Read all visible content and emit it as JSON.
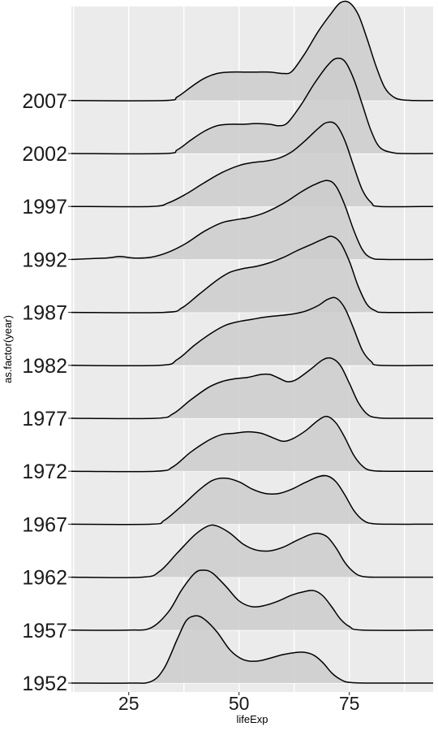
{
  "chart_data": {
    "type": "ridgeline",
    "xlabel": "lifeExp",
    "ylabel": "as.factor(year)",
    "xticks": [
      25,
      50,
      75
    ],
    "xlim": [
      12,
      94
    ],
    "grid": true,
    "background_color": "#ebebeb",
    "fill_color": "#cccccc",
    "line_color": "#000000",
    "categories": [
      "1952",
      "1957",
      "1962",
      "1967",
      "1972",
      "1977",
      "1982",
      "1987",
      "1992",
      "1997",
      "2002",
      "2007"
    ],
    "series": [
      {
        "name": "1952",
        "points": [
          [
            12,
            0
          ],
          [
            25,
            0
          ],
          [
            30,
            0.02
          ],
          [
            33,
            0.2
          ],
          [
            36,
            0.6
          ],
          [
            38,
            0.85
          ],
          [
            40,
            0.92
          ],
          [
            42,
            0.88
          ],
          [
            45,
            0.7
          ],
          [
            48,
            0.45
          ],
          [
            51,
            0.32
          ],
          [
            54,
            0.3
          ],
          [
            57,
            0.34
          ],
          [
            60,
            0.39
          ],
          [
            63,
            0.42
          ],
          [
            65,
            0.42
          ],
          [
            67,
            0.38
          ],
          [
            69,
            0.28
          ],
          [
            71,
            0.14
          ],
          [
            73,
            0.05
          ],
          [
            75,
            0.01
          ],
          [
            80,
            0
          ],
          [
            94,
            0
          ]
        ]
      },
      {
        "name": "1957",
        "points": [
          [
            12,
            0
          ],
          [
            25,
            0
          ],
          [
            30,
            0.03
          ],
          [
            34,
            0.25
          ],
          [
            37,
            0.55
          ],
          [
            40,
            0.78
          ],
          [
            42,
            0.82
          ],
          [
            44,
            0.78
          ],
          [
            47,
            0.6
          ],
          [
            50,
            0.4
          ],
          [
            53,
            0.32
          ],
          [
            56,
            0.34
          ],
          [
            59,
            0.4
          ],
          [
            62,
            0.48
          ],
          [
            65,
            0.53
          ],
          [
            67,
            0.54
          ],
          [
            69,
            0.47
          ],
          [
            71,
            0.32
          ],
          [
            73,
            0.15
          ],
          [
            75,
            0.05
          ],
          [
            78,
            0
          ],
          [
            94,
            0
          ]
        ]
      },
      {
        "name": "1962",
        "points": [
          [
            12,
            0
          ],
          [
            28,
            0
          ],
          [
            32,
            0.08
          ],
          [
            36,
            0.33
          ],
          [
            40,
            0.58
          ],
          [
            43,
            0.7
          ],
          [
            45,
            0.7
          ],
          [
            48,
            0.6
          ],
          [
            51,
            0.45
          ],
          [
            54,
            0.37
          ],
          [
            57,
            0.36
          ],
          [
            60,
            0.41
          ],
          [
            63,
            0.5
          ],
          [
            66,
            0.58
          ],
          [
            68,
            0.6
          ],
          [
            70,
            0.55
          ],
          [
            72,
            0.4
          ],
          [
            74,
            0.2
          ],
          [
            76,
            0.07
          ],
          [
            78,
            0.01
          ],
          [
            82,
            0
          ],
          [
            94,
            0
          ]
        ]
      },
      {
        "name": "1967",
        "points": [
          [
            12,
            0
          ],
          [
            30,
            0
          ],
          [
            33,
            0.05
          ],
          [
            37,
            0.25
          ],
          [
            41,
            0.47
          ],
          [
            44,
            0.6
          ],
          [
            47,
            0.63
          ],
          [
            50,
            0.58
          ],
          [
            53,
            0.48
          ],
          [
            56,
            0.42
          ],
          [
            59,
            0.42
          ],
          [
            62,
            0.48
          ],
          [
            65,
            0.57
          ],
          [
            68,
            0.65
          ],
          [
            70,
            0.66
          ],
          [
            72,
            0.58
          ],
          [
            74,
            0.4
          ],
          [
            76,
            0.19
          ],
          [
            78,
            0.06
          ],
          [
            80,
            0.01
          ],
          [
            84,
            0
          ],
          [
            94,
            0
          ]
        ]
      },
      {
        "name": "1972",
        "points": [
          [
            12,
            0
          ],
          [
            31,
            0
          ],
          [
            35,
            0.06
          ],
          [
            39,
            0.26
          ],
          [
            43,
            0.42
          ],
          [
            46,
            0.5
          ],
          [
            49,
            0.52
          ],
          [
            52,
            0.54
          ],
          [
            55,
            0.52
          ],
          [
            58,
            0.45
          ],
          [
            60,
            0.41
          ],
          [
            62,
            0.44
          ],
          [
            65,
            0.55
          ],
          [
            68,
            0.7
          ],
          [
            70,
            0.75
          ],
          [
            72,
            0.66
          ],
          [
            74,
            0.46
          ],
          [
            76,
            0.22
          ],
          [
            78,
            0.07
          ],
          [
            80,
            0.01
          ],
          [
            84,
            0
          ],
          [
            94,
            0
          ]
        ]
      },
      {
        "name": "1977",
        "points": [
          [
            12,
            0
          ],
          [
            31,
            0
          ],
          [
            35,
            0.06
          ],
          [
            39,
            0.25
          ],
          [
            43,
            0.42
          ],
          [
            46,
            0.5
          ],
          [
            49,
            0.54
          ],
          [
            52,
            0.56
          ],
          [
            55,
            0.6
          ],
          [
            57,
            0.6
          ],
          [
            59,
            0.55
          ],
          [
            61,
            0.5
          ],
          [
            63,
            0.53
          ],
          [
            66,
            0.66
          ],
          [
            69,
            0.8
          ],
          [
            71,
            0.82
          ],
          [
            73,
            0.72
          ],
          [
            75,
            0.48
          ],
          [
            77,
            0.22
          ],
          [
            79,
            0.06
          ],
          [
            81,
            0.01
          ],
          [
            85,
            0
          ],
          [
            94,
            0
          ]
        ]
      },
      {
        "name": "1982",
        "points": [
          [
            12,
            0
          ],
          [
            32,
            0
          ],
          [
            36,
            0.08
          ],
          [
            40,
            0.28
          ],
          [
            44,
            0.45
          ],
          [
            47,
            0.55
          ],
          [
            50,
            0.6
          ],
          [
            53,
            0.63
          ],
          [
            56,
            0.66
          ],
          [
            59,
            0.68
          ],
          [
            62,
            0.7
          ],
          [
            65,
            0.74
          ],
          [
            68,
            0.82
          ],
          [
            70,
            0.9
          ],
          [
            72,
            0.92
          ],
          [
            74,
            0.78
          ],
          [
            76,
            0.5
          ],
          [
            78,
            0.2
          ],
          [
            80,
            0.05
          ],
          [
            82,
            0
          ],
          [
            94,
            0
          ]
        ]
      },
      {
        "name": "1987",
        "points": [
          [
            12,
            0
          ],
          [
            33,
            0
          ],
          [
            37,
            0.06
          ],
          [
            41,
            0.25
          ],
          [
            45,
            0.44
          ],
          [
            48,
            0.55
          ],
          [
            51,
            0.6
          ],
          [
            54,
            0.63
          ],
          [
            57,
            0.68
          ],
          [
            60,
            0.75
          ],
          [
            63,
            0.84
          ],
          [
            66,
            0.92
          ],
          [
            69,
            1.0
          ],
          [
            71,
            1.04
          ],
          [
            73,
            0.95
          ],
          [
            75,
            0.7
          ],
          [
            77,
            0.36
          ],
          [
            79,
            0.11
          ],
          [
            81,
            0.02
          ],
          [
            83,
            0
          ],
          [
            94,
            0
          ]
        ]
      },
      {
        "name": "1992",
        "points": [
          [
            12,
            0
          ],
          [
            20,
            0.02
          ],
          [
            23,
            0.04
          ],
          [
            26,
            0.02
          ],
          [
            30,
            0.03
          ],
          [
            34,
            0.1
          ],
          [
            38,
            0.22
          ],
          [
            42,
            0.38
          ],
          [
            46,
            0.5
          ],
          [
            49,
            0.54
          ],
          [
            52,
            0.57
          ],
          [
            55,
            0.62
          ],
          [
            58,
            0.7
          ],
          [
            61,
            0.8
          ],
          [
            64,
            0.92
          ],
          [
            67,
            1.02
          ],
          [
            70,
            1.08
          ],
          [
            72,
            1.0
          ],
          [
            74,
            0.74
          ],
          [
            76,
            0.4
          ],
          [
            78,
            0.13
          ],
          [
            80,
            0.02
          ],
          [
            83,
            0
          ],
          [
            94,
            0
          ]
        ]
      },
      {
        "name": "1997",
        "points": [
          [
            12,
            0
          ],
          [
            30,
            0
          ],
          [
            34,
            0.05
          ],
          [
            38,
            0.17
          ],
          [
            42,
            0.32
          ],
          [
            46,
            0.46
          ],
          [
            50,
            0.56
          ],
          [
            53,
            0.6
          ],
          [
            56,
            0.62
          ],
          [
            59,
            0.66
          ],
          [
            62,
            0.75
          ],
          [
            65,
            0.9
          ],
          [
            68,
            1.07
          ],
          [
            70,
            1.15
          ],
          [
            72,
            1.12
          ],
          [
            74,
            0.9
          ],
          [
            76,
            0.55
          ],
          [
            78,
            0.22
          ],
          [
            80,
            0.05
          ],
          [
            82,
            0
          ],
          [
            94,
            0
          ]
        ]
      },
      {
        "name": "2002",
        "points": [
          [
            12,
            0
          ],
          [
            33,
            0
          ],
          [
            36,
            0.05
          ],
          [
            39,
            0.18
          ],
          [
            42,
            0.3
          ],
          [
            45,
            0.38
          ],
          [
            48,
            0.4
          ],
          [
            51,
            0.4
          ],
          [
            54,
            0.41
          ],
          [
            57,
            0.4
          ],
          [
            59,
            0.38
          ],
          [
            61,
            0.42
          ],
          [
            64,
            0.66
          ],
          [
            67,
            0.95
          ],
          [
            70,
            1.2
          ],
          [
            72,
            1.3
          ],
          [
            74,
            1.26
          ],
          [
            76,
            1.02
          ],
          [
            78,
            0.66
          ],
          [
            80,
            0.3
          ],
          [
            82,
            0.08
          ],
          [
            85,
            0.01
          ],
          [
            88,
            0
          ],
          [
            94,
            0
          ]
        ]
      },
      {
        "name": "2007",
        "points": [
          [
            12,
            0
          ],
          [
            33,
            0
          ],
          [
            36,
            0.05
          ],
          [
            39,
            0.18
          ],
          [
            42,
            0.3
          ],
          [
            45,
            0.37
          ],
          [
            48,
            0.39
          ],
          [
            51,
            0.39
          ],
          [
            54,
            0.39
          ],
          [
            57,
            0.39
          ],
          [
            60,
            0.37
          ],
          [
            62,
            0.4
          ],
          [
            65,
            0.65
          ],
          [
            68,
            0.95
          ],
          [
            71,
            1.2
          ],
          [
            73,
            1.34
          ],
          [
            75,
            1.34
          ],
          [
            77,
            1.18
          ],
          [
            79,
            0.85
          ],
          [
            81,
            0.48
          ],
          [
            83,
            0.18
          ],
          [
            85,
            0.05
          ],
          [
            87,
            0.01
          ],
          [
            90,
            0
          ],
          [
            94,
            0
          ]
        ]
      }
    ]
  }
}
